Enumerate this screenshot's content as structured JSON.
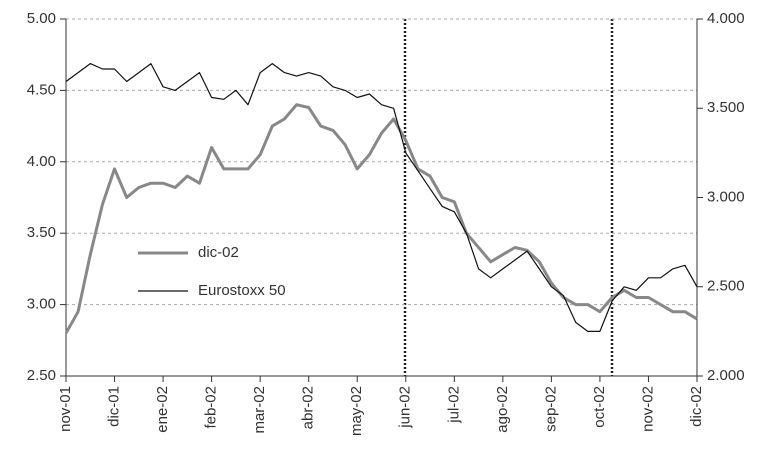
{
  "chart_data": {
    "type": "line",
    "categories": [
      "nov-01",
      null,
      null,
      null,
      "dic-01",
      null,
      null,
      null,
      "ene-02",
      null,
      null,
      null,
      "feb-02",
      null,
      null,
      null,
      "mar-02",
      null,
      null,
      null,
      "abr-02",
      null,
      null,
      null,
      "may-02",
      null,
      null,
      null,
      "jun-02",
      null,
      null,
      null,
      "jul-02",
      null,
      null,
      null,
      "ago-02",
      null,
      null,
      null,
      "sep-02",
      null,
      null,
      null,
      "oct-02",
      null,
      null,
      null,
      "nov-02",
      null,
      null,
      null,
      "dic-02"
    ],
    "series": [
      {
        "name": "dic-02",
        "color": "#888888",
        "values": [
          2.8,
          2.95,
          3.35,
          3.7,
          3.95,
          3.75,
          3.82,
          3.85,
          3.85,
          3.82,
          3.9,
          3.85,
          4.1,
          3.95,
          3.95,
          3.95,
          4.05,
          4.25,
          4.3,
          4.4,
          4.38,
          4.25,
          4.22,
          4.12,
          3.95,
          4.05,
          4.2,
          4.3,
          4.15,
          3.95,
          3.9,
          3.75,
          3.72,
          3.5,
          3.4,
          3.3,
          3.35,
          3.4,
          3.38,
          3.3,
          3.15,
          3.05,
          3.0,
          3.0,
          2.95,
          3.05,
          3.1,
          3.05,
          3.05,
          3.0,
          2.95,
          2.95,
          2.9
        ]
      },
      {
        "name": "Eurostoxx 50",
        "color": "#111111",
        "axis": "y2",
        "values": [
          3650,
          3700,
          3750,
          3720,
          3720,
          3650,
          3700,
          3750,
          3620,
          3600,
          3650,
          3700,
          3560,
          3550,
          3600,
          3520,
          3700,
          3750,
          3700,
          3680,
          3700,
          3680,
          3620,
          3600,
          3560,
          3580,
          3520,
          3500,
          3250,
          3150,
          3050,
          2950,
          2920,
          2800,
          2600,
          2550,
          2600,
          2650,
          2700,
          2600,
          2500,
          2450,
          2300,
          2250,
          2250,
          2420,
          2500,
          2480,
          2550,
          2550,
          2600,
          2620,
          2500
        ]
      }
    ],
    "ylim": [
      2.5,
      5.0
    ],
    "yticks": [
      {
        "value": 2.5,
        "label": "2.50"
      },
      {
        "value": 3.0,
        "label": "3.00"
      },
      {
        "value": 3.5,
        "label": "3.50"
      },
      {
        "value": 4.0,
        "label": "4.00"
      },
      {
        "value": 4.5,
        "label": "4.50"
      },
      {
        "value": 5.0,
        "label": "5.00"
      }
    ],
    "y2lim": [
      2000,
      4000
    ],
    "y2ticks": [
      {
        "value": 2000,
        "label": "2.000"
      },
      {
        "value": 2500,
        "label": "2.500"
      },
      {
        "value": 3000,
        "label": "3.000"
      },
      {
        "value": 3500,
        "label": "3.500"
      },
      {
        "value": 4000,
        "label": "4.000"
      }
    ],
    "grid": true
  }
}
